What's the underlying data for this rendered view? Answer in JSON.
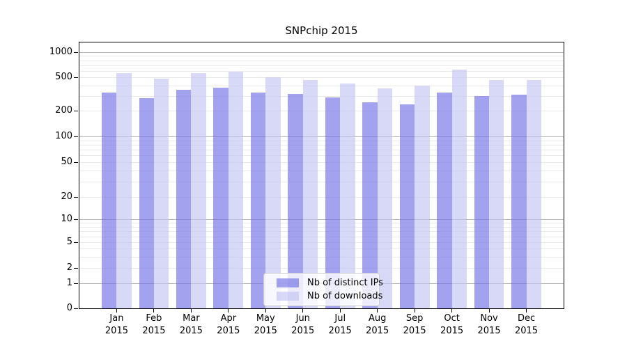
{
  "chart_data": {
    "type": "bar",
    "title": "SNPchip 2015",
    "x_tick_labels": [
      {
        "month": "Jan",
        "year": "2015"
      },
      {
        "month": "Feb",
        "year": "2015"
      },
      {
        "month": "Mar",
        "year": "2015"
      },
      {
        "month": "Apr",
        "year": "2015"
      },
      {
        "month": "May",
        "year": "2015"
      },
      {
        "month": "Jun",
        "year": "2015"
      },
      {
        "month": "Jul",
        "year": "2015"
      },
      {
        "month": "Aug",
        "year": "2015"
      },
      {
        "month": "Sep",
        "year": "2015"
      },
      {
        "month": "Oct",
        "year": "2015"
      },
      {
        "month": "Nov",
        "year": "2015"
      },
      {
        "month": "Dec",
        "year": "2015"
      }
    ],
    "series": [
      {
        "name": "Nb of distinct IPs",
        "color": "rgba(108,108,230,0.63)",
        "rendered_color": "#a3a3f0",
        "values": [
          330,
          285,
          355,
          380,
          330,
          320,
          290,
          255,
          240,
          330,
          300,
          315
        ]
      },
      {
        "name": "Nb of downloads",
        "color": "rgba(193,193,242,0.63)",
        "rendered_color": "#d9d9f7",
        "values": [
          560,
          480,
          560,
          580,
          505,
          470,
          420,
          370,
          400,
          620,
          465,
          465
        ]
      }
    ],
    "y_axis": {
      "ticks": [
        0,
        1,
        2,
        5,
        10,
        20,
        50,
        100,
        200,
        500,
        1000
      ],
      "scale": "logarithmic with 0 baseline",
      "range": [
        0,
        1300
      ]
    },
    "grid": {
      "on": true,
      "major_lines": [
        1,
        10,
        100,
        1000
      ],
      "minor_multiples": [
        2,
        3,
        4,
        5,
        6,
        7,
        8,
        9
      ],
      "minor_decades": [
        1,
        10,
        100
      ]
    },
    "legend": {
      "position": "lower center",
      "entries": [
        "Nb of distinct IPs",
        "Nb of downloads"
      ]
    }
  },
  "colors": {
    "bar_distinct_ips": "#a3a3f0",
    "bar_downloads": "#d9d9f7",
    "major_grid": "#b3b3b3",
    "minor_grid": "#e9e9e9",
    "axis_and_text": "#000000",
    "legend_border": "#cccccc",
    "legend_background": "rgba(255,255,255,0.8)"
  }
}
